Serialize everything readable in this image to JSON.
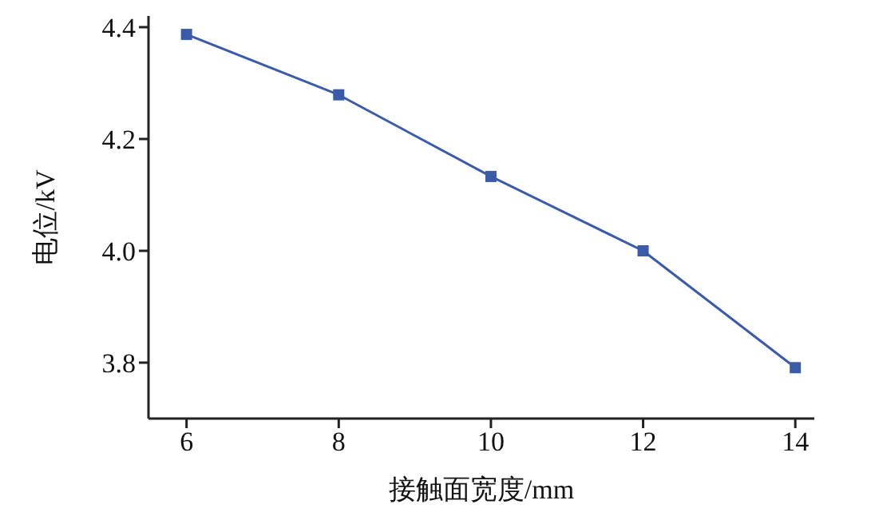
{
  "chart_data": {
    "type": "line",
    "xlabel": "接触面宽度/mm",
    "ylabel": "电位/kV",
    "x": [
      6,
      8,
      10,
      12,
      14
    ],
    "series": [
      {
        "color": "#3a5ba8",
        "values": [
          4.387,
          4.279,
          4.133,
          4.0,
          3.791
        ]
      }
    ],
    "xlim": [
      5.5,
      14.25
    ],
    "xticks": [
      6,
      8,
      10,
      12,
      14
    ],
    "ylim": [
      3.7,
      4.42
    ],
    "yticks": [
      3.8,
      {
        "value": 4,
        "label": "4.0"
      },
      4.2,
      4.4
    ],
    "marker": "square",
    "line_style": "solid",
    "grid": false,
    "legend": false
  }
}
